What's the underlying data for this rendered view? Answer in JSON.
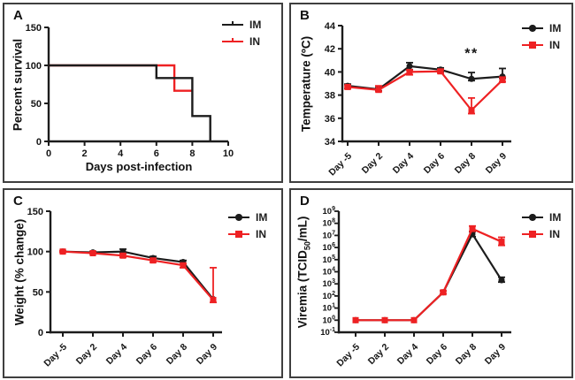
{
  "figure": {
    "legend": {
      "im_label": "IM",
      "in_label": "IN"
    },
    "colors": {
      "im": "#1c1c1c",
      "in": "#ee2123",
      "text": "#141414",
      "panel_border": "#3f3f3f"
    }
  },
  "chart_data": [
    {
      "panel": "A",
      "type": "line",
      "subtype": "kaplan-meier-step",
      "xlabel": "Days post-infection",
      "ylabel": "Percent survival",
      "xlim": [
        0,
        10
      ],
      "ylim": [
        0,
        150
      ],
      "xticks": [
        0,
        2,
        4,
        6,
        8,
        10
      ],
      "yticks": [
        0,
        50,
        100,
        150
      ],
      "grid": false,
      "legend_position": "top-right",
      "legend": [
        "IM",
        "IN"
      ],
      "series": [
        {
          "name": "IM",
          "color_key": "im",
          "points": [
            [
              0,
              100
            ],
            [
              6,
              100
            ],
            [
              6,
              83.3
            ],
            [
              8,
              83.3
            ],
            [
              8,
              33.3
            ],
            [
              9,
              33.3
            ],
            [
              9,
              0
            ]
          ]
        },
        {
          "name": "IN",
          "color_key": "in",
          "points": [
            [
              0,
              100
            ],
            [
              7,
              100
            ],
            [
              7,
              66.7
            ],
            [
              8,
              66.7
            ]
          ]
        }
      ]
    },
    {
      "panel": "B",
      "type": "line",
      "ylabel": "Temperature (ºC)",
      "categories": [
        "Day -5",
        "Day 2",
        "Day 4",
        "Day 6",
        "Day 8",
        "Day 9"
      ],
      "ylim": [
        34,
        44
      ],
      "yticks": [
        34,
        36,
        38,
        40,
        42,
        44
      ],
      "grid": false,
      "legend_position": "top-right",
      "legend": [
        "IM",
        "IN"
      ],
      "series": [
        {
          "name": "IM",
          "color_key": "im",
          "marker": "circle",
          "values": [
            38.8,
            38.5,
            40.5,
            40.2,
            39.4,
            39.6
          ],
          "upper": [
            38.95,
            38.65,
            40.8,
            40.35,
            39.95,
            40.3
          ],
          "lower": [
            38.6,
            38.35,
            40.2,
            40.05,
            39.25,
            39.45
          ]
        },
        {
          "name": "IN",
          "color_key": "in",
          "marker": "square",
          "values": [
            38.7,
            38.45,
            40.0,
            40.05,
            36.7,
            39.3
          ],
          "upper": [
            38.8,
            38.8,
            40.15,
            40.2,
            37.75,
            39.55
          ],
          "lower": [
            38.55,
            38.3,
            39.75,
            39.9,
            36.4,
            39.15
          ]
        }
      ],
      "annotation": {
        "text": "**",
        "category_index": 4,
        "y": 41.2
      }
    },
    {
      "panel": "C",
      "type": "line",
      "ylabel": "Weight (% change)",
      "categories": [
        "Day -5",
        "Day 2",
        "Day 4",
        "Day 6",
        "Day 8",
        "Day 9"
      ],
      "ylim": [
        0,
        150
      ],
      "yticks": [
        0,
        50,
        100,
        150
      ],
      "grid": false,
      "legend_position": "top-right",
      "legend": [
        "IM",
        "IN"
      ],
      "series": [
        {
          "name": "IM",
          "color_key": "im",
          "marker": "circle",
          "values": [
            100,
            99,
            100,
            92,
            87,
            41
          ],
          "upper": [
            101,
            100,
            103,
            94,
            89,
            41
          ],
          "lower": [
            99,
            98,
            99,
            91,
            85,
            41
          ]
        },
        {
          "name": "IN",
          "color_key": "in",
          "marker": "square",
          "values": [
            100,
            98,
            95,
            89,
            83,
            40
          ],
          "upper": [
            101,
            99,
            97,
            91,
            85,
            80
          ],
          "lower": [
            99,
            97,
            93,
            87,
            80,
            37
          ]
        }
      ]
    },
    {
      "panel": "D",
      "type": "line",
      "subtype": "log10-y",
      "ylabel_parts": {
        "pre": "Viremia (TCID",
        "sub": "50",
        "post": "/mL)"
      },
      "categories": [
        "Day -5",
        "Day 2",
        "Day 4",
        "Day 6",
        "Day 8",
        "Day 9"
      ],
      "ylim_exp": [
        -1,
        9
      ],
      "ytick_exponents": [
        -1,
        0,
        1,
        2,
        3,
        4,
        5,
        6,
        7,
        8,
        9
      ],
      "ytick_base": "10",
      "grid": false,
      "legend_position": "top-right",
      "legend": [
        "IM",
        "IN"
      ],
      "series": [
        {
          "name": "IM",
          "color_key": "im",
          "marker": "circle",
          "values": [
            1,
            1,
            1,
            200,
            13000000,
            2000
          ],
          "upper": [
            1,
            1,
            1,
            260,
            20000000,
            3500
          ],
          "lower": [
            1,
            1,
            1,
            150,
            8000000,
            1400
          ]
        },
        {
          "name": "IN",
          "color_key": "in",
          "marker": "square",
          "values": [
            1,
            1,
            1,
            200,
            35000000,
            3000000
          ],
          "upper": [
            1,
            1,
            1,
            260,
            60000000,
            7000000
          ],
          "lower": [
            1,
            1,
            1,
            150,
            22000000,
            1500000
          ]
        }
      ]
    }
  ]
}
